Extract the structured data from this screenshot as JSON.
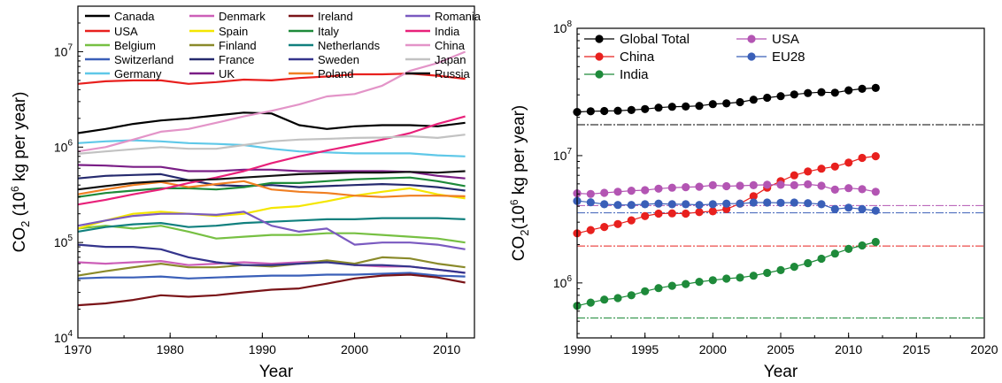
{
  "chart_data": [
    {
      "type": "line",
      "xlabel": "Year",
      "ylabel_main": "CO",
      "ylabel_sub": "2",
      "ylabel_pre": " (10",
      "ylabel_sup": "6",
      "ylabel_post": " kg per year)",
      "xlim": [
        1970,
        2013
      ],
      "ylim": [
        10000,
        30000000
      ],
      "yscale": "log",
      "xticks": [
        1970,
        1980,
        1990,
        2000,
        2010
      ],
      "yticks": [
        {
          "base": "10",
          "exp": "4",
          "v": 10000
        },
        {
          "base": "10",
          "exp": "5",
          "v": 100000
        },
        {
          "base": "10",
          "exp": "6",
          "v": 1000000
        },
        {
          "base": "10",
          "exp": "7",
          "v": 10000000
        }
      ],
      "legend_placement": "top",
      "x": [
        1970,
        1973,
        1976,
        1979,
        1982,
        1985,
        1988,
        1991,
        1994,
        1997,
        2000,
        2003,
        2006,
        2009,
        2012
      ],
      "series": [
        {
          "name": "Canada",
          "color": "#000000",
          "values": [
            1400000,
            1550000,
            1750000,
            1900000,
            2000000,
            2150000,
            2300000,
            2250000,
            1700000,
            1550000,
            1650000,
            1700000,
            1700000,
            1650000,
            1800000
          ]
        },
        {
          "name": "USA",
          "color": "#e8201e",
          "values": [
            4600000,
            4900000,
            5000000,
            5000000,
            4600000,
            4800000,
            5100000,
            5000000,
            5300000,
            5500000,
            5800000,
            5800000,
            5900000,
            5600000,
            5200000
          ]
        },
        {
          "name": "Belgium",
          "color": "#77c043",
          "values": [
            140000,
            150000,
            140000,
            150000,
            130000,
            110000,
            115000,
            120000,
            120000,
            125000,
            125000,
            120000,
            115000,
            110000,
            100000
          ]
        },
        {
          "name": "Switzerland",
          "color": "#3a5fb8",
          "values": [
            42000,
            43000,
            43000,
            44000,
            42000,
            43000,
            44000,
            45000,
            45000,
            46000,
            46000,
            47000,
            48000,
            45000,
            44000
          ]
        },
        {
          "name": "Germany",
          "color": "#5fc8e8",
          "values": [
            1100000,
            1150000,
            1180000,
            1150000,
            1100000,
            1080000,
            1050000,
            960000,
            900000,
            880000,
            860000,
            860000,
            860000,
            820000,
            800000
          ]
        },
        {
          "name": "Denmark",
          "color": "#cc5fb8",
          "values": [
            62000,
            60000,
            62000,
            64000,
            58000,
            60000,
            62000,
            60000,
            62000,
            64000,
            58000,
            56000,
            56000,
            52000,
            48000
          ]
        },
        {
          "name": "Spain",
          "color": "#f4e600",
          "values": [
            140000,
            170000,
            200000,
            210000,
            200000,
            190000,
            200000,
            230000,
            240000,
            270000,
            310000,
            340000,
            370000,
            320000,
            290000
          ]
        },
        {
          "name": "Finland",
          "color": "#8a8a2a",
          "values": [
            45000,
            50000,
            55000,
            60000,
            55000,
            55000,
            58000,
            56000,
            60000,
            65000,
            60000,
            70000,
            68000,
            60000,
            55000
          ]
        },
        {
          "name": "France",
          "color": "#252a6e",
          "values": [
            470000,
            500000,
            510000,
            520000,
            450000,
            400000,
            390000,
            400000,
            380000,
            390000,
            400000,
            410000,
            400000,
            380000,
            350000
          ]
        },
        {
          "name": "UK",
          "color": "#7a1e86",
          "values": [
            650000,
            640000,
            620000,
            620000,
            560000,
            560000,
            580000,
            580000,
            560000,
            560000,
            560000,
            560000,
            550000,
            500000,
            470000
          ]
        },
        {
          "name": "Ireland",
          "color": "#7a1418",
          "values": [
            22000,
            23000,
            25000,
            28000,
            27000,
            28000,
            30000,
            32000,
            33000,
            37000,
            42000,
            45000,
            46000,
            43000,
            38000
          ]
        },
        {
          "name": "Italy",
          "color": "#1e8a3a",
          "values": [
            300000,
            330000,
            350000,
            370000,
            370000,
            360000,
            380000,
            420000,
            420000,
            440000,
            460000,
            470000,
            480000,
            440000,
            390000
          ]
        },
        {
          "name": "Netherlands",
          "color": "#11807e",
          "values": [
            130000,
            145000,
            155000,
            160000,
            145000,
            150000,
            160000,
            165000,
            170000,
            175000,
            175000,
            180000,
            180000,
            180000,
            175000
          ]
        },
        {
          "name": "Sweden",
          "color": "#34348c",
          "values": [
            95000,
            90000,
            90000,
            85000,
            70000,
            62000,
            58000,
            58000,
            60000,
            62000,
            58000,
            58000,
            56000,
            52000,
            48000
          ]
        },
        {
          "name": "Poland",
          "color": "#f07f22",
          "values": [
            320000,
            360000,
            400000,
            430000,
            380000,
            410000,
            440000,
            360000,
            340000,
            330000,
            310000,
            300000,
            310000,
            310000,
            305000
          ]
        },
        {
          "name": "Romania",
          "color": "#7a5ac0",
          "values": [
            150000,
            170000,
            190000,
            200000,
            200000,
            195000,
            210000,
            150000,
            130000,
            140000,
            95000,
            100000,
            100000,
            95000,
            85000
          ]
        },
        {
          "name": "India",
          "color": "#e8217a",
          "values": [
            250000,
            280000,
            320000,
            360000,
            420000,
            480000,
            560000,
            680000,
            800000,
            920000,
            1050000,
            1200000,
            1400000,
            1750000,
            2100000
          ]
        },
        {
          "name": "China",
          "color": "#e394c8",
          "values": [
            900000,
            1000000,
            1200000,
            1450000,
            1550000,
            1800000,
            2100000,
            2400000,
            2800000,
            3400000,
            3600000,
            4400000,
            6300000,
            7600000,
            10000000
          ]
        },
        {
          "name": "Japan",
          "color": "#c2c2c2",
          "values": [
            850000,
            900000,
            950000,
            1000000,
            960000,
            960000,
            1050000,
            1150000,
            1200000,
            1220000,
            1250000,
            1260000,
            1300000,
            1250000,
            1350000
          ]
        },
        {
          "name": "Russia",
          "color": "#111111",
          "values": [
            360000,
            390000,
            420000,
            440000,
            450000,
            460000,
            480000,
            500000,
            520000,
            530000,
            540000,
            540000,
            550000,
            540000,
            560000
          ]
        }
      ]
    },
    {
      "type": "line",
      "xlabel": "Year",
      "ylabel_main": "CO",
      "ylabel_sub": "2",
      "ylabel_pre": "(10",
      "ylabel_sup": "6",
      "ylabel_post": " kg per year)",
      "xlim": [
        1990,
        2020
      ],
      "ylim": [
        370000,
        100000000
      ],
      "yscale": "log",
      "xticks": [
        1990,
        1995,
        2000,
        2005,
        2010,
        2015,
        2020
      ],
      "yticks": [
        {
          "base": "10",
          "exp": "6",
          "v": 1000000
        },
        {
          "base": "10",
          "exp": "7",
          "v": 10000000
        },
        {
          "base": "10",
          "exp": "8",
          "v": 100000000
        }
      ],
      "legend_placement": "top-left",
      "x": [
        1990,
        1991,
        1992,
        1993,
        1994,
        1995,
        1996,
        1997,
        1998,
        1999,
        2000,
        2001,
        2002,
        2003,
        2004,
        2005,
        2006,
        2007,
        2008,
        2009,
        2010,
        2011,
        2012
      ],
      "series": [
        {
          "name": "Global Total",
          "color": "#000000",
          "values": [
            22000000,
            22300000,
            22400000,
            22500000,
            22800000,
            23200000,
            23800000,
            24200000,
            24300000,
            24600000,
            25400000,
            25700000,
            26300000,
            27500000,
            28500000,
            29300000,
            30200000,
            31000000,
            31500000,
            31200000,
            32600000,
            33500000,
            34000000
          ]
        },
        {
          "name": "China",
          "color": "#e8201e",
          "values": [
            2450000,
            2600000,
            2750000,
            2900000,
            3100000,
            3350000,
            3500000,
            3520000,
            3500000,
            3600000,
            3650000,
            3800000,
            4200000,
            4800000,
            5600000,
            6300000,
            7000000,
            7500000,
            7900000,
            8200000,
            8800000,
            9600000,
            9900000
          ]
        },
        {
          "name": "India",
          "color": "#1e8a3a",
          "values": [
            660000,
            700000,
            740000,
            760000,
            800000,
            860000,
            910000,
            950000,
            980000,
            1020000,
            1050000,
            1080000,
            1100000,
            1140000,
            1200000,
            1260000,
            1340000,
            1430000,
            1550000,
            1700000,
            1850000,
            1970000,
            2100000
          ]
        },
        {
          "name": "USA",
          "color": "#b355b3",
          "values": [
            5050000,
            5000000,
            5100000,
            5200000,
            5300000,
            5350000,
            5500000,
            5600000,
            5650000,
            5700000,
            5850000,
            5750000,
            5800000,
            5850000,
            5900000,
            5900000,
            5850000,
            5950000,
            5800000,
            5400000,
            5550000,
            5450000,
            5200000
          ]
        },
        {
          "name": "EU28",
          "color": "#3a5fb8",
          "values": [
            4400000,
            4300000,
            4150000,
            4100000,
            4100000,
            4150000,
            4200000,
            4150000,
            4150000,
            4100000,
            4150000,
            4200000,
            4200000,
            4280000,
            4280000,
            4260000,
            4280000,
            4230000,
            4150000,
            3800000,
            3900000,
            3800000,
            3700000
          ]
        }
      ],
      "reference_lines": [
        {
          "name": "Global Total",
          "color": "#000000",
          "value": 17500000
        },
        {
          "name": "USA",
          "color": "#b355b3",
          "value": 4050000
        },
        {
          "name": "EU28",
          "color": "#3a5fb8",
          "value": 3550000
        },
        {
          "name": "China",
          "color": "#e8201e",
          "value": 1950000
        },
        {
          "name": "India",
          "color": "#1e8a3a",
          "value": 530000
        }
      ]
    }
  ]
}
